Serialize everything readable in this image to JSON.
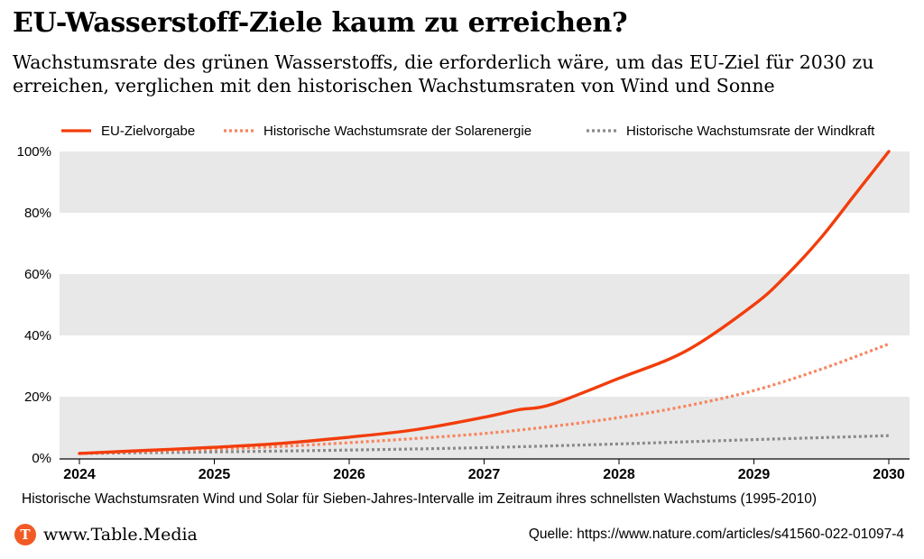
{
  "header": {
    "title": "EU-Wasserstoff-Ziele kaum zu erreichen?",
    "subtitle": "Wachstumsrate des grünen Wasserstoffs, die erforderlich wäre, um das EU-Ziel für 2030 zu erreichen, verglichen mit den historischen Wachstumsraten von Wind und Sonne"
  },
  "footer": {
    "note": "Historische Wachstumsraten Wind und Solar für Sieben-Jahres-Intervalle im Zeitraum ihres schnellsten Wachstums (1995-2010)",
    "brand": "www.Table.Media",
    "brand_logo": "T",
    "source": "Quelle: https://www.nature.com/articles/s41560-022-01097-4"
  },
  "chart_data": {
    "type": "line",
    "x_ticks": [
      "2024",
      "2025",
      "2026",
      "2027",
      "2028",
      "2029",
      "2030"
    ],
    "ylim": [
      0,
      100
    ],
    "y_ticks": [
      "0%",
      "20%",
      "40%",
      "60%",
      "80%",
      "100%"
    ],
    "grid": "alternating horizontal bands",
    "legend_position": "top",
    "series": [
      {
        "name": "EU-Zielvorgabe",
        "color": "#f23d0c",
        "style": "solid",
        "x": [
          2024,
          2024.5,
          2025,
          2025.5,
          2026,
          2026.5,
          2027,
          2027.25,
          2027.5,
          2028,
          2028.5,
          2029,
          2029.25,
          2029.5,
          2029.75,
          2030
        ],
        "y": [
          1.5,
          2.5,
          3.5,
          4.8,
          6.8,
          9.3,
          13.3,
          15.7,
          17.5,
          26,
          35,
          50,
          60,
          72,
          86,
          100
        ]
      },
      {
        "name": "Historische Wachstumsrate der Solarenergie",
        "color": "#f7845e",
        "style": "dotted",
        "x": [
          2024,
          2024.5,
          2025,
          2025.5,
          2026,
          2026.5,
          2027,
          2027.5,
          2028,
          2028.5,
          2029,
          2029.5,
          2030
        ],
        "y": [
          1.5,
          2.2,
          2.9,
          3.8,
          5.0,
          6.4,
          8.0,
          10.3,
          13.2,
          17.0,
          22.0,
          29.0,
          37.2
        ]
      },
      {
        "name": "Historische Wachstumsrate der Windkraft",
        "color": "#8a8a8a",
        "style": "dotted",
        "x": [
          2024,
          2025,
          2026,
          2027,
          2028,
          2029,
          2030
        ],
        "y": [
          1.5,
          2.0,
          2.6,
          3.4,
          4.6,
          6.0,
          7.3
        ]
      }
    ]
  }
}
